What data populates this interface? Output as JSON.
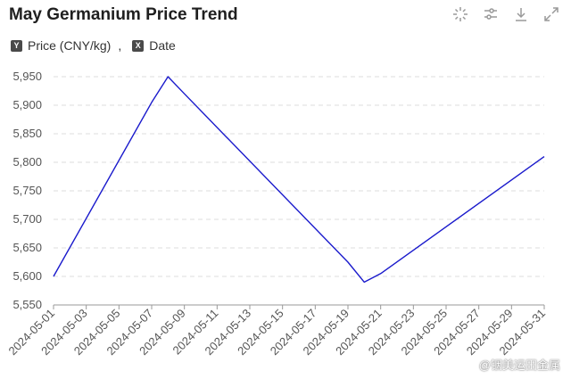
{
  "header": {
    "title": "May Germanium Price Trend"
  },
  "toolbar": {
    "icons": [
      "select-icon",
      "filter-icon",
      "download-icon",
      "fullscreen-icon"
    ]
  },
  "legend": {
    "y_badge": "Y",
    "y_label": "Price (CNY/kg)",
    "separator": ",",
    "x_badge": "X",
    "x_label": "Date"
  },
  "watermark": "@铟美运田金属",
  "colors": {
    "line": "#1a1acc",
    "grid": "#dddddd",
    "axis_text": "#555555"
  },
  "chart_data": {
    "type": "line",
    "title": "May Germanium Price Trend",
    "xlabel": "Date",
    "ylabel": "Price (CNY/kg)",
    "ylim": [
      5550,
      5950
    ],
    "y_ticks": [
      "5,550",
      "5,600",
      "5,650",
      "5,700",
      "5,750",
      "5,800",
      "5,850",
      "5,900",
      "5,950"
    ],
    "x_ticks": [
      "2024-05-01",
      "2024-05-03",
      "2024-05-05",
      "2024-05-07",
      "2024-05-09",
      "2024-05-11",
      "2024-05-13",
      "2024-05-15",
      "2024-05-17",
      "2024-05-19",
      "2024-05-21",
      "2024-05-23",
      "2024-05-25",
      "2024-05-27",
      "2024-05-29",
      "2024-05-31"
    ],
    "grid": true,
    "series": [
      {
        "values": [
          [
            "2024-05-01",
            5600
          ],
          [
            "2024-05-07",
            5905
          ],
          [
            "2024-05-08",
            5950
          ],
          [
            "2024-05-09",
            5920
          ],
          [
            "2024-05-19",
            5625
          ],
          [
            "2024-05-20",
            5590
          ],
          [
            "2024-05-21",
            5605
          ],
          [
            "2024-05-31",
            5810
          ]
        ]
      }
    ]
  }
}
